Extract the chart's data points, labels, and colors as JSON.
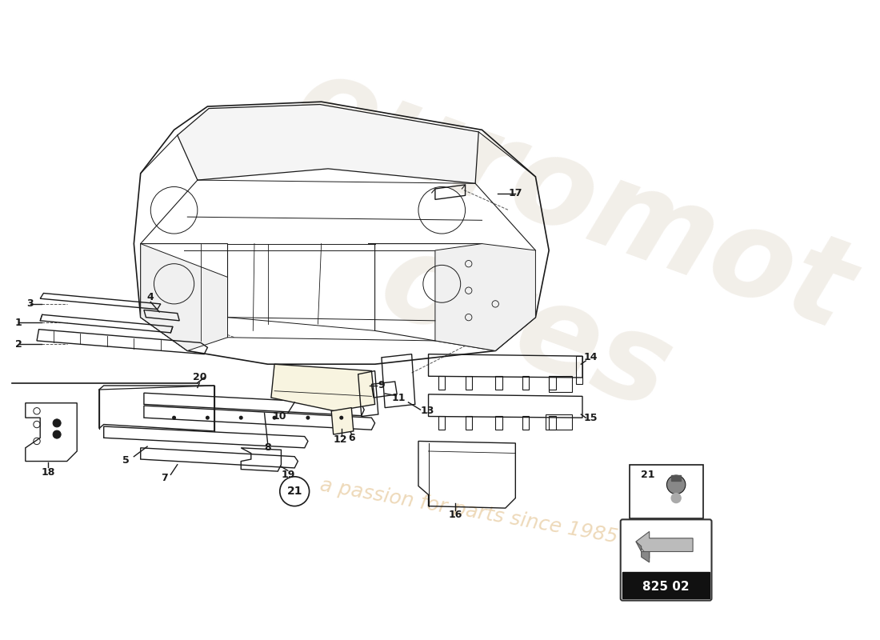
{
  "bg": "#ffffff",
  "lc": "#1a1a1a",
  "lw": 1.0,
  "fig_w": 11.0,
  "fig_h": 8.0,
  "dpi": 100,
  "part_number": "825 02",
  "watermark_text1": "euromot",
  "watermark_text2": "ores",
  "watermark_slogan": "a passion for parts since 1985"
}
